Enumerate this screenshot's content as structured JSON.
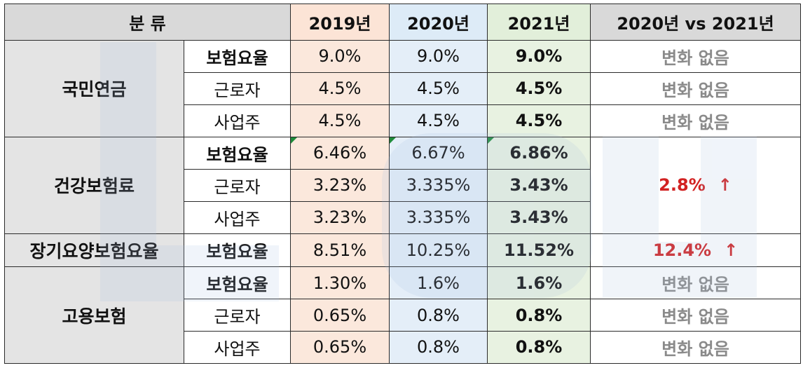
{
  "header": [
    "분 류",
    "2019년",
    "2020년",
    "2021년",
    "2020년 vs 2021년"
  ],
  "groups": [
    {
      "name": "국민연금",
      "rows": [
        {
          "label": "보험요율",
          "y2019": "9.0%",
          "y2020": "9.0%",
          "y2021": "9.0%",
          "change": "변화 없음"
        },
        {
          "label": "근로자",
          "y2019": "4.5%",
          "y2020": "4.5%",
          "y2021": "4.5%",
          "change": "변화 없음"
        },
        {
          "label": "사업주",
          "y2019": "4.5%",
          "y2020": "4.5%",
          "y2021": "4.5%",
          "change": "변화 없음"
        }
      ]
    },
    {
      "name": "건강보험료",
      "change": "2.8%",
      "change_arrow": "↑",
      "rows": [
        {
          "label": "보험요율",
          "y2019": "6.46%",
          "y2020": "6.67%",
          "y2021": "6.86%"
        },
        {
          "label": "근로자",
          "y2019": "3.23%",
          "y2020": "3.335%",
          "y2021": "3.43%"
        },
        {
          "label": "사업주",
          "y2019": "3.23%",
          "y2020": "3.335%",
          "y2021": "3.43%"
        }
      ]
    },
    {
      "name": "장기요양보험요율",
      "rows": [
        {
          "label": "보험요율",
          "y2019": "8.51%",
          "y2020": "10.25%",
          "y2021": "11.52%",
          "change": "12.4%",
          "change_arrow": "↑"
        }
      ]
    },
    {
      "name": "고용보험",
      "rows": [
        {
          "label": "보험요율",
          "y2019": "1.30%",
          "y2020": "1.6%",
          "y2021": "1.6%",
          "change": "변화 없음"
        },
        {
          "label": "근로자",
          "y2019": "0.65%",
          "y2020": "0.8%",
          "y2021": "0.8%",
          "change": "변화 없음"
        },
        {
          "label": "사업주",
          "y2019": "0.65%",
          "y2020": "0.8%",
          "y2021": "0.8%",
          "change": "변화 없음"
        }
      ]
    }
  ],
  "colors": {
    "header_gray": "#d9d9d9",
    "col_2019": "#fce4d6",
    "col_2020": "#ddebf7",
    "col_2021": "#e2efda",
    "change_gray": "#8a8a8a",
    "change_red": "#d22222",
    "watermark": "#a9bfe0"
  },
  "watermark_text": "LOKU"
}
